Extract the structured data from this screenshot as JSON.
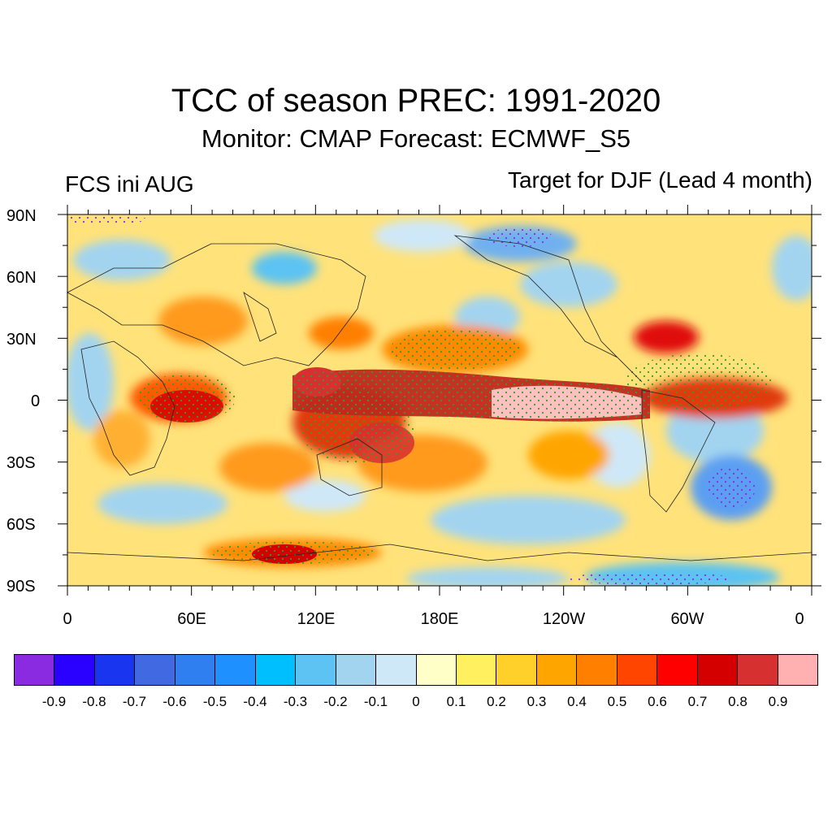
{
  "title": "TCC of season PREC: 1991-2020",
  "subtitle": "Monitor: CMAP   Forecast: ECMWF_S5",
  "left_label": "FCS ini AUG",
  "right_label": "Target for DJF (Lead 4 month)",
  "lat_labels": [
    "90N",
    "60N",
    "30N",
    "0",
    "30S",
    "60S",
    "90S"
  ],
  "lon_labels": [
    "0",
    "60E",
    "120E",
    "180E",
    "120W",
    "60W",
    "0"
  ],
  "colorbar": {
    "colors": [
      "#8a2be2",
      "#2a00ff",
      "#1a35f0",
      "#4169e1",
      "#2f7ff0",
      "#1e90ff",
      "#00bfff",
      "#5cc3f2",
      "#a2d4f0",
      "#cfe8f8",
      "#ffffc8",
      "#fff060",
      "#ffd02a",
      "#ffa500",
      "#ff7f00",
      "#ff4500",
      "#ff0000",
      "#d40000",
      "#d63030",
      "#ffb0b0"
    ],
    "labels": [
      "-0.9",
      "-0.8",
      "-0.7",
      "-0.6",
      "-0.5",
      "-0.4",
      "-0.3",
      "-0.2",
      "-0.1",
      "0",
      "0.1",
      "0.2",
      "0.3",
      "0.4",
      "0.5",
      "0.6",
      "0.7",
      "0.8",
      "0.9"
    ]
  }
}
